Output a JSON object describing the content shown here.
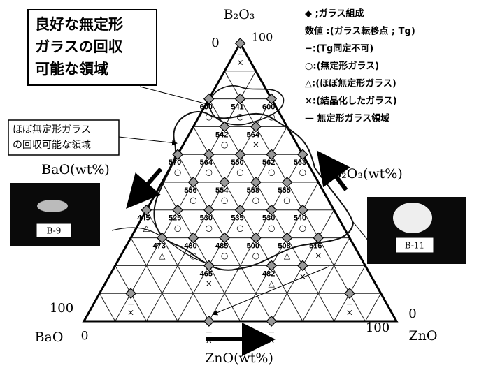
{
  "chart_data": {
    "type": "ternary",
    "divisions": 10,
    "axes": [
      {
        "name": "B₂O₃",
        "direction_label": "B₂O₃(wt%)",
        "ticks": [
          0,
          100
        ]
      },
      {
        "name": "ZnO",
        "direction_label": "ZnO(wt%)",
        "ticks": [
          0,
          100
        ]
      },
      {
        "name": "BaO",
        "direction_label": "BaO(wt%)",
        "ticks": [
          0,
          100
        ]
      }
    ],
    "points": [
      {
        "b2o3": 100,
        "zno": 0,
        "marks": [
          "−",
          "×"
        ]
      },
      {
        "b2o3": 80,
        "zno": 0,
        "tg": "600",
        "marks": [
          "○"
        ]
      },
      {
        "b2o3": 80,
        "zno": 10,
        "tg": "541",
        "marks": [
          "○"
        ]
      },
      {
        "b2o3": 80,
        "zno": 20,
        "tg": "600",
        "marks": [
          "○"
        ]
      },
      {
        "b2o3": 70,
        "zno": 10,
        "tg": "542",
        "marks": [
          "○"
        ]
      },
      {
        "b2o3": 70,
        "zno": 20,
        "tg": "564",
        "marks": [
          "×"
        ]
      },
      {
        "b2o3": 60,
        "zno": 0,
        "tg": "570",
        "marks": [
          "○"
        ]
      },
      {
        "b2o3": 60,
        "zno": 10,
        "tg": "564",
        "marks": [
          "○"
        ]
      },
      {
        "b2o3": 60,
        "zno": 20,
        "tg": "550",
        "marks": [
          "○"
        ]
      },
      {
        "b2o3": 60,
        "zno": 30,
        "tg": "562",
        "marks": [
          "○"
        ]
      },
      {
        "b2o3": 60,
        "zno": 40,
        "tg": "563",
        "marks": [
          "○"
        ]
      },
      {
        "b2o3": 50,
        "zno": 10,
        "tg": "556",
        "marks": [
          "○"
        ]
      },
      {
        "b2o3": 50,
        "zno": 20,
        "tg": "554",
        "marks": [
          "○"
        ]
      },
      {
        "b2o3": 50,
        "zno": 30,
        "tg": "558",
        "marks": [
          "○"
        ]
      },
      {
        "b2o3": 50,
        "zno": 40,
        "tg": "555",
        "marks": [
          "○"
        ]
      },
      {
        "b2o3": 40,
        "zno": 0,
        "tg": "445",
        "marks": [
          "△"
        ]
      },
      {
        "b2o3": 40,
        "zno": 10,
        "tg": "525",
        "marks": [
          "○"
        ]
      },
      {
        "b2o3": 40,
        "zno": 20,
        "tg": "530",
        "marks": [
          "○"
        ]
      },
      {
        "b2o3": 40,
        "zno": 30,
        "tg": "535",
        "marks": [
          "○"
        ]
      },
      {
        "b2o3": 40,
        "zno": 40,
        "tg": "530",
        "marks": [
          "○"
        ]
      },
      {
        "b2o3": 40,
        "zno": 50,
        "tg": "540",
        "marks": [
          "○"
        ]
      },
      {
        "b2o3": 30,
        "zno": 10,
        "tg": "473",
        "marks": [
          "△"
        ]
      },
      {
        "b2o3": 30,
        "zno": 20,
        "tg": "480",
        "marks": [
          "○"
        ]
      },
      {
        "b2o3": 30,
        "zno": 30,
        "tg": "485",
        "marks": [
          "○"
        ]
      },
      {
        "b2o3": 30,
        "zno": 40,
        "tg": "500",
        "marks": [
          "○"
        ]
      },
      {
        "b2o3": 30,
        "zno": 50,
        "tg": "508",
        "marks": [
          "△"
        ]
      },
      {
        "b2o3": 30,
        "zno": 60,
        "tg": "516",
        "marks": [
          "×"
        ]
      },
      {
        "b2o3": 20,
        "zno": 30,
        "tg": "465",
        "marks": [
          "×"
        ]
      },
      {
        "b2o3": 20,
        "zno": 50,
        "tg": "482",
        "marks": [
          "△"
        ]
      },
      {
        "b2o3": 20,
        "zno": 60,
        "marks": [
          "×"
        ]
      },
      {
        "b2o3": 10,
        "zno": 10,
        "marks": [
          "−",
          "×"
        ]
      },
      {
        "b2o3": 10,
        "zno": 80,
        "marks": [
          "−",
          "×"
        ]
      },
      {
        "b2o3": 0,
        "zno": 40,
        "marks": [
          "−",
          "×"
        ]
      },
      {
        "b2o3": 0,
        "zno": 60,
        "marks": [
          "−",
          "×"
        ]
      }
    ],
    "legend": [
      "◆ ;ガラス組成",
      "数値 :(ガラス転移点 ; Tg)",
      "−:(Tg同定不可)",
      "○:(無定形ガラス)",
      "△:(ほぼ無定形ガラス)",
      "×:(結晶化したガラス)",
      "— 無定形ガラス領域"
    ],
    "callouts": [
      [
        "良好な無定形",
        "ガラスの回収",
        "可能な領域"
      ],
      [
        "ほぼ無定形ガラス",
        "の回収可能な領域"
      ]
    ],
    "photos": [
      "B-9",
      "B-11"
    ]
  }
}
